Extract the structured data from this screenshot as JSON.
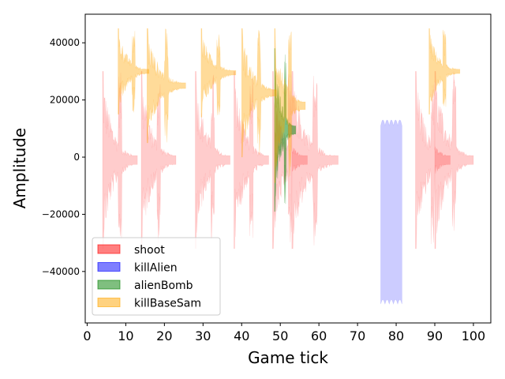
{
  "chart_data": {
    "type": "area",
    "title": "",
    "xlabel": "Game tick",
    "ylabel": "Amplitude",
    "xlim": [
      -0.5,
      104.5
    ],
    "ylim": [
      -58000,
      50000
    ],
    "xticks": [
      0,
      10,
      20,
      30,
      40,
      50,
      60,
      70,
      80,
      90,
      100
    ],
    "yticks": [
      -40000,
      -20000,
      0,
      20000,
      40000
    ],
    "colors": {
      "shoot": "#ff0000",
      "killAlien": "#0000ff",
      "alienBomb": "#008000",
      "killBaseSam": "#ffa500"
    },
    "legend": {
      "position": "lower-left",
      "entries": [
        "shoot",
        "killAlien",
        "alienBomb",
        "killBaseSam"
      ]
    },
    "series": [
      {
        "name": "shoot",
        "alpha": 0.2,
        "events": [
          {
            "start": 4,
            "end": 13,
            "peak": 30000,
            "trough": -32000
          },
          {
            "start": 14,
            "end": 23,
            "peak": 30000,
            "trough": -32000
          },
          {
            "start": 28,
            "end": 37,
            "peak": 30000,
            "trough": -32000
          },
          {
            "start": 38,
            "end": 47,
            "peak": 30000,
            "trough": -32000
          },
          {
            "start": 48,
            "end": 57,
            "peak": 30000,
            "trough": -32000
          },
          {
            "start": 53,
            "end": 65,
            "peak": 30000,
            "trough": -32000
          },
          {
            "start": 85,
            "end": 94,
            "peak": 30000,
            "trough": -32000
          },
          {
            "start": 90,
            "end": 100,
            "peak": 30000,
            "trough": -32000
          }
        ]
      },
      {
        "name": "killAlien",
        "alpha": 0.2,
        "events": [
          {
            "start": 76,
            "end": 81.5,
            "peak": 13000,
            "trough": -53000
          }
        ]
      },
      {
        "name": "alienBomb",
        "alpha": 0.5,
        "events": [
          {
            "start": 48.5,
            "end": 54,
            "peak": 38000,
            "trough": -19000
          }
        ]
      },
      {
        "name": "killBaseSam",
        "alpha": 0.4,
        "events": [
          {
            "start": 8,
            "end": 16,
            "peak": 45000,
            "trough": 15000
          },
          {
            "start": 15.5,
            "end": 25.5,
            "peak": 45000,
            "trough": 5000
          },
          {
            "start": 29.5,
            "end": 38.5,
            "peak": 45000,
            "trough": 14000
          },
          {
            "start": 40,
            "end": 49,
            "peak": 45000,
            "trough": 0
          },
          {
            "start": 48.5,
            "end": 56.5,
            "peak": 45000,
            "trough": -9000
          },
          {
            "start": 88.5,
            "end": 96.5,
            "peak": 45000,
            "trough": 15000
          }
        ]
      }
    ]
  }
}
